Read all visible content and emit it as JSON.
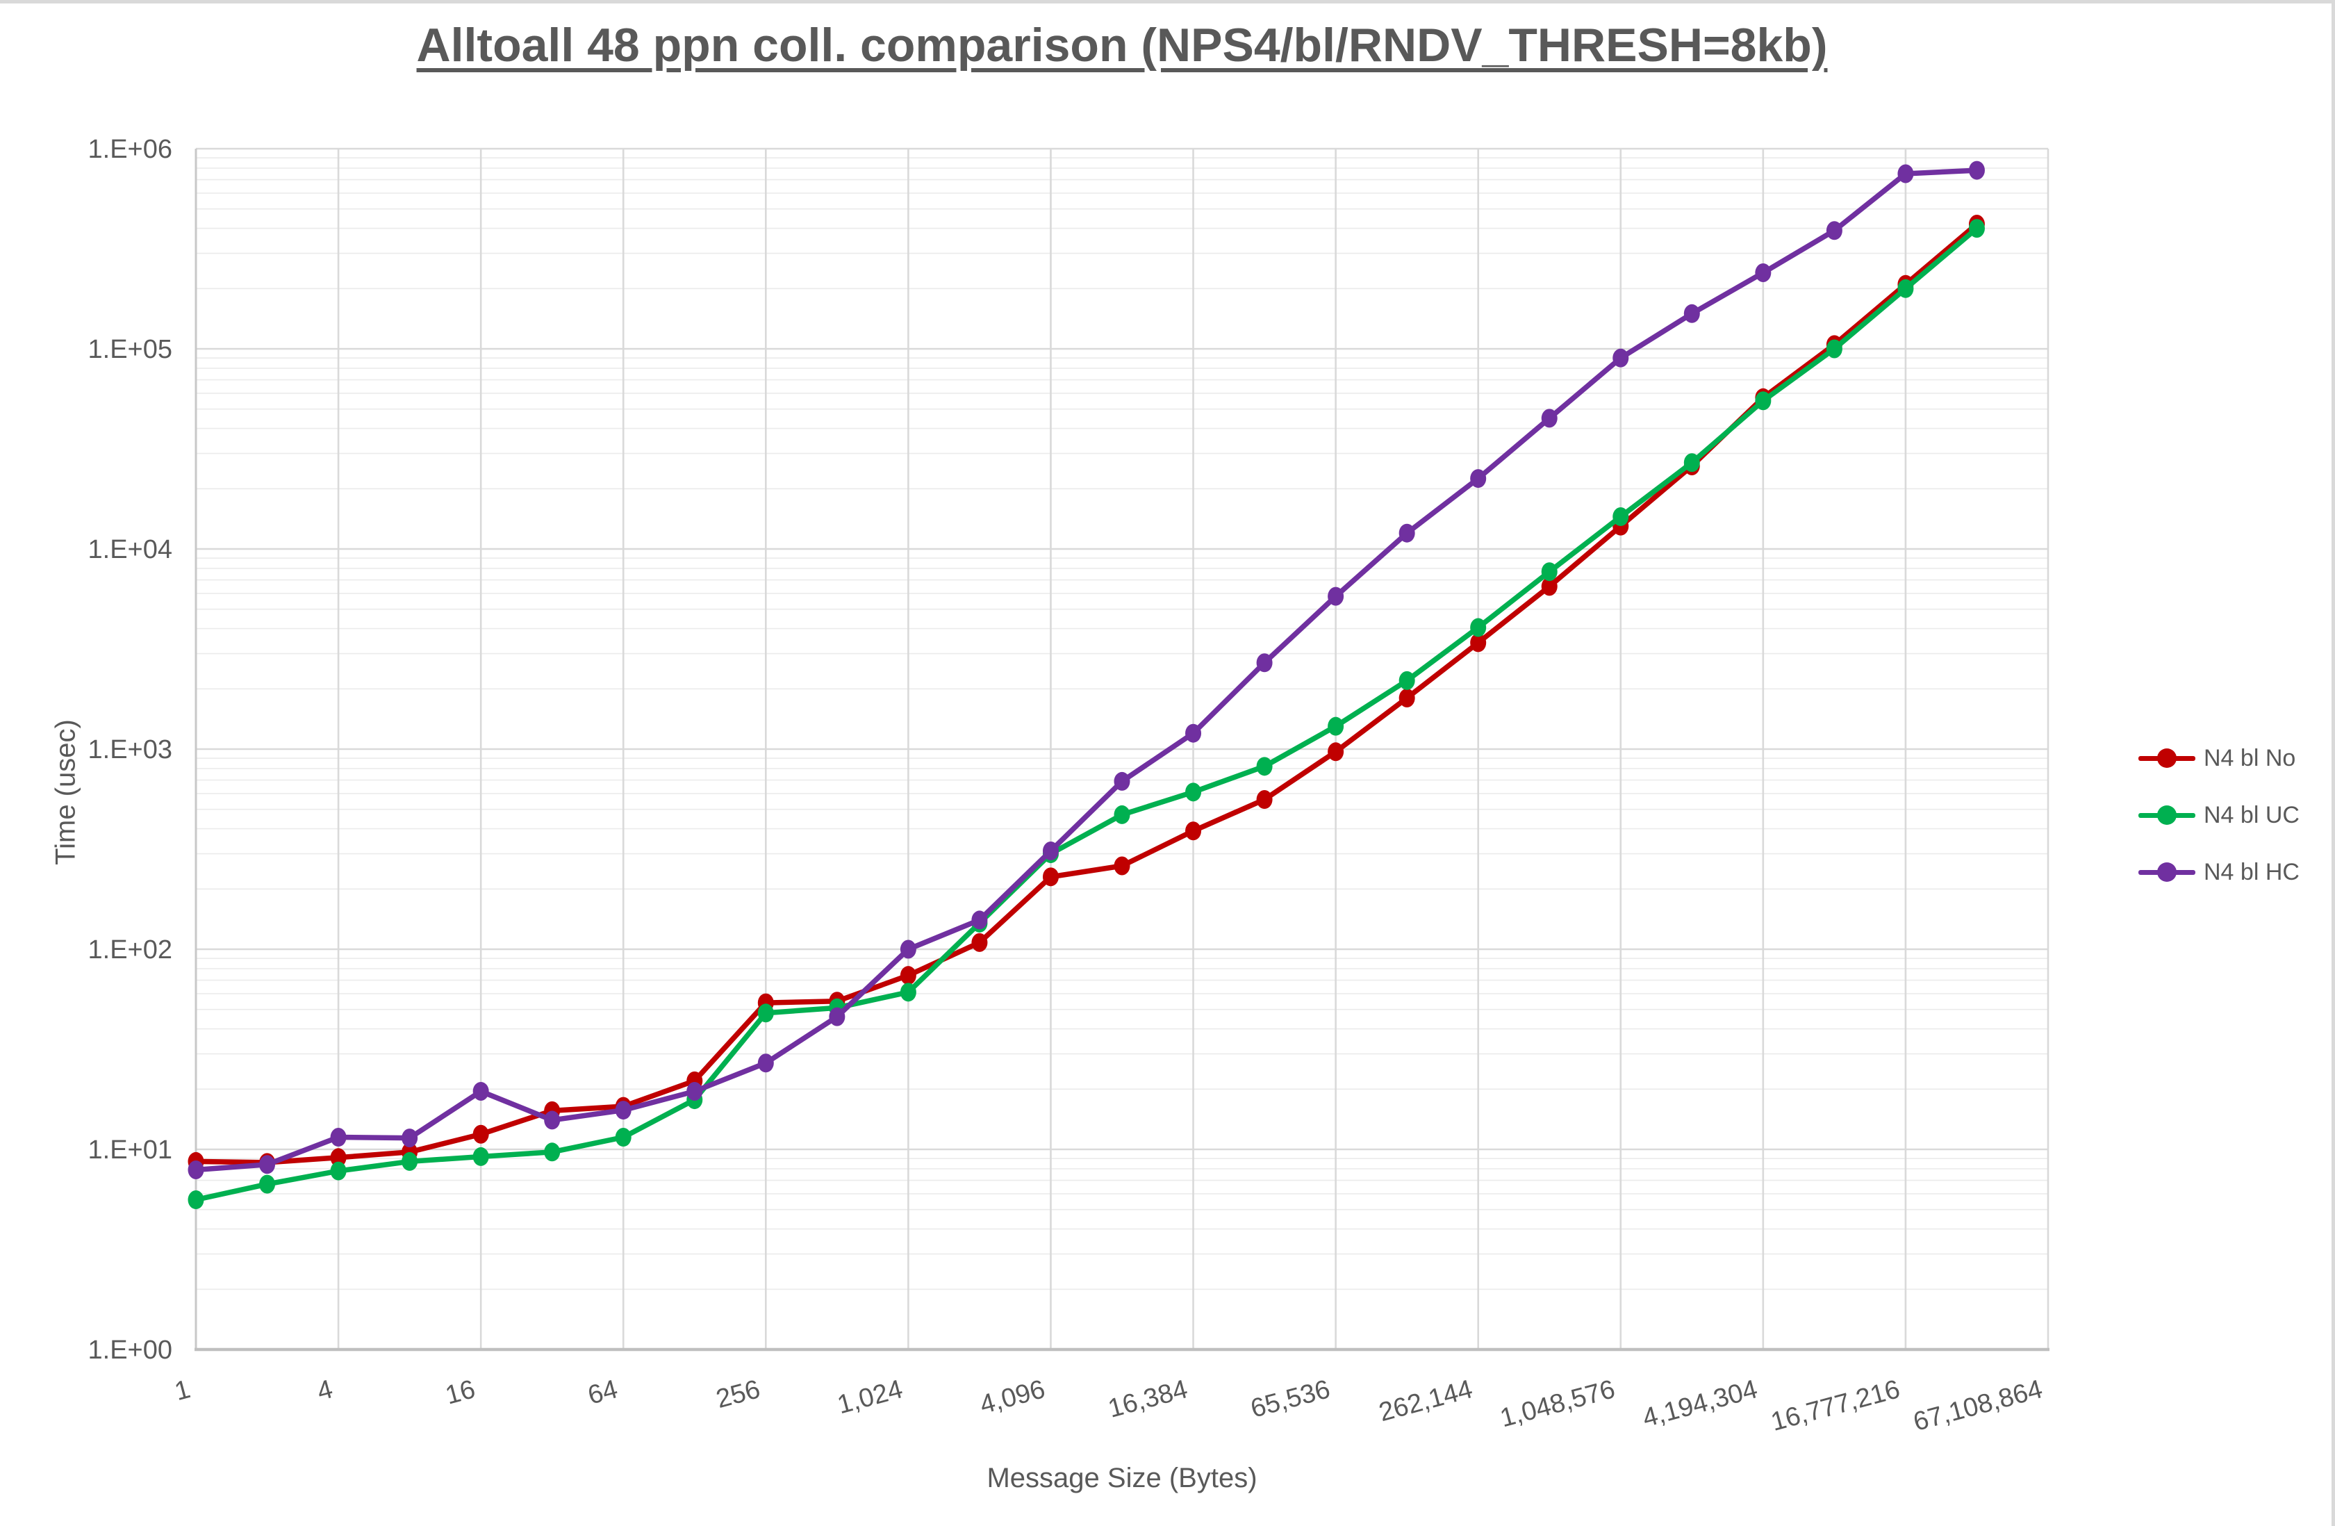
{
  "title": "Alltoall 48 ppn coll. comparison (NPS4/bl/RNDV_THRESH=8kb)",
  "chart_data": {
    "type": "line",
    "title": "Alltoall 48 ppn coll. comparison (NPS4/bl/RNDV_THRESH=8kb)",
    "xlabel": "Message Size (Bytes)",
    "ylabel": "Time (usec)",
    "x_scale": "log2_category",
    "y_scale": "log10",
    "ylim": [
      1,
      1000000
    ],
    "y_tick_labels": [
      "1.E+00",
      "1.E+01",
      "1.E+02",
      "1.E+03",
      "1.E+04",
      "1.E+05",
      "1.E+06"
    ],
    "x_tick_labels": [
      "1",
      "4",
      "16",
      "64",
      "256",
      "1,024",
      "4,096",
      "16,384",
      "65,536",
      "262,144",
      "1,048,576",
      "4,194,304",
      "16,777,216",
      "67,108,864"
    ],
    "categories": [
      1,
      2,
      4,
      8,
      16,
      32,
      64,
      128,
      256,
      512,
      1024,
      2048,
      4096,
      8192,
      16384,
      32768,
      65536,
      131072,
      262144,
      524288,
      1048576,
      2097152,
      4194304,
      8388608,
      16777216,
      33554432,
      67108864
    ],
    "legend_position": "right",
    "grid": {
      "major": true,
      "minor_log": true
    },
    "series": [
      {
        "name": "N4 bl No",
        "color": "#C00000",
        "values": [
          8.7,
          8.6,
          9.1,
          9.7,
          11.9,
          15.6,
          16.4,
          22,
          54,
          55,
          74,
          108,
          230,
          261,
          390,
          560,
          970,
          1800,
          3400,
          6500,
          13000,
          26000,
          57000,
          105000,
          210000,
          420000,
          null
        ]
      },
      {
        "name": "N4 bl UC",
        "color": "#00B050",
        "values": [
          5.6,
          6.7,
          7.8,
          8.7,
          9.2,
          9.7,
          11.5,
          17.7,
          48,
          51,
          61,
          135,
          300,
          470,
          610,
          820,
          1300,
          2200,
          4050,
          7700,
          14500,
          27000,
          55000,
          100000,
          200000,
          400000,
          null
        ]
      },
      {
        "name": "N4 bl HC",
        "color": "#7030A0",
        "values": [
          7.9,
          8.4,
          11.5,
          11.4,
          19.5,
          14.0,
          15.7,
          19.5,
          27,
          46,
          100,
          140,
          310,
          690,
          1200,
          2700,
          5800,
          12000,
          22500,
          45000,
          90000,
          150000,
          240000,
          390000,
          750000,
          780000,
          null
        ]
      }
    ],
    "style": {
      "text_color": "#595959",
      "major_grid_color": "#D9D9D9",
      "minor_grid_color": "#EBEBEB",
      "axis_line_color": "#BFBFBF",
      "background": "#FFFFFF"
    }
  }
}
